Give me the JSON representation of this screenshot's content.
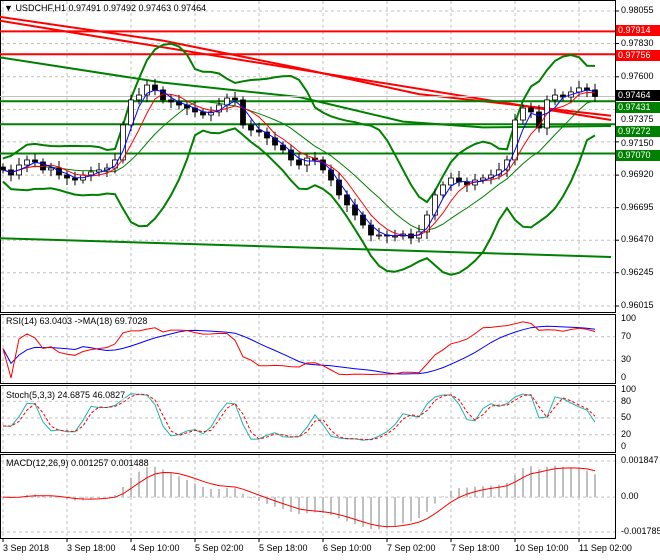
{
  "header": {
    "symbol_title": "USDCHF,H1",
    "ohlc": "0.97491 0.97492 0.97463 0.97464",
    "menu_icon": "triangle-down-icon"
  },
  "chart_data": {
    "type": "candlestick",
    "symbol": "USDCHF",
    "timeframe": "H1",
    "bar_interval_hours": 2,
    "closes": [
      0.96956,
      0.96921,
      0.9699,
      0.97025,
      0.97011,
      0.96956,
      0.96969,
      0.96921,
      0.969,
      0.96886,
      0.96921,
      0.96942,
      0.96956,
      0.96969,
      0.97025,
      0.97267,
      0.9744,
      0.97474,
      0.97543,
      0.97509,
      0.9744,
      0.97426,
      0.97405,
      0.97384,
      0.97357,
      0.97336,
      0.97357,
      0.97405,
      0.97453,
      0.9744,
      0.97267,
      0.97232,
      0.97218,
      0.97177,
      0.97128,
      0.97094,
      0.97025,
      0.9699,
      0.97038,
      0.97025,
      0.96956,
      0.96886,
      0.96783,
      0.96714,
      0.96644,
      0.96575,
      0.96506,
      0.96506,
      0.96499,
      0.96499,
      0.96513,
      0.96485,
      0.96527,
      0.96644,
      0.96783,
      0.96852,
      0.969,
      0.96873,
      0.96852,
      0.96886,
      0.969,
      0.96921,
      0.96956,
      0.97025,
      0.97301,
      0.97384,
      0.97357,
      0.97246,
      0.9744,
      0.97474,
      0.9746,
      0.97495,
      0.97523,
      0.97509,
      0.97464
    ],
    "price_axis": {
      "ticks": [
        "0.98055",
        "0.97830",
        "0.97600",
        "0.97375",
        "0.97150",
        "0.96920",
        "0.96695",
        "0.96470",
        "0.96245",
        "0.96015"
      ],
      "range": [
        0.96015,
        0.98055
      ]
    },
    "current_price": "0.97464",
    "levels": [
      {
        "price": 0.97914,
        "label": "0.97914",
        "color": "#ff0000"
      },
      {
        "price": 0.97756,
        "label": "0.97756",
        "color": "#ff0000"
      },
      {
        "price": 0.97431,
        "label": "0.97431",
        "color": "#008000"
      },
      {
        "price": 0.97272,
        "label": "0.97272",
        "color": "#008000"
      },
      {
        "price": 0.9707,
        "label": "0.97070",
        "color": "#008000"
      }
    ],
    "trendlines": [
      {
        "color": "#ff0000",
        "from_bar": -1,
        "from_price": 0.97993,
        "to_bar": 76,
        "to_price": 0.97301
      },
      {
        "color": "#008000",
        "from_bar": -1,
        "from_price": 0.96485,
        "to_bar": 76,
        "to_price": 0.96354
      }
    ],
    "long_ma_red": [
      [
        -1,
        0.9802
      ],
      [
        20,
        0.9785
      ],
      [
        37,
        0.9766
      ],
      [
        52,
        0.9748
      ],
      [
        65,
        0.974
      ],
      [
        76,
        0.9733
      ]
    ],
    "long_ma_green": [
      [
        -1,
        0.9774
      ],
      [
        20,
        0.9756
      ],
      [
        37,
        0.9746
      ],
      [
        50,
        0.9729
      ],
      [
        60,
        0.9725
      ],
      [
        76,
        0.9726
      ]
    ],
    "time_axis": [
      "3 Sep 2018",
      "3 Sep 18:00",
      "4 Sep 10:00",
      "5 Sep 02:00",
      "5 Sep 18:00",
      "6 Sep 10:00",
      "7 Sep 02:00",
      "7 Sep 18:00",
      "10 Sep 10:00",
      "11 Sep 02:00"
    ],
    "indicators": {
      "rsi": {
        "label": "RSI(14) 63.0403  ->MA(18) 69.7028",
        "ticks": [
          "100",
          "70",
          "30",
          "0"
        ],
        "range": [
          0,
          100
        ]
      },
      "stoch": {
        "label": "Stoch(5,3,3) 24.6875 46.0827",
        "ticks": [
          "100",
          "80",
          "50",
          "20",
          "0"
        ],
        "range": [
          0,
          100
        ]
      },
      "macd": {
        "label": "MACD(12,26,9) 0.001257 0.001488",
        "ticks": [
          "0.001847",
          "0.00",
          "-0.001785"
        ],
        "range": [
          -0.001785,
          0.001847
        ]
      }
    },
    "colors": {
      "rsi": "#ff0000",
      "rsi_ma": "#0000ff",
      "stoch_main": "#20b2aa",
      "stoch_signal": "#ff0000",
      "macd_hist": "#c0c0c0",
      "macd_signal": "#ff0000",
      "bands": "#008000",
      "ma_fast": "#0000ff",
      "ma_slow": "#ff0000"
    }
  }
}
